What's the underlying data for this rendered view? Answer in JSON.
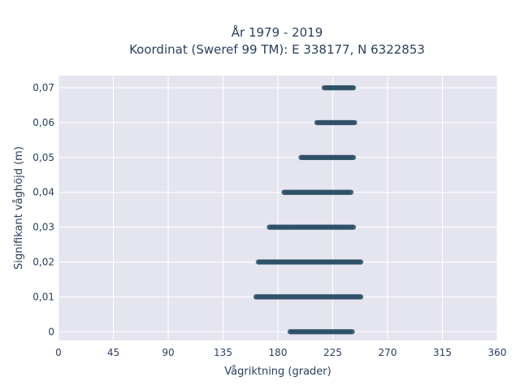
{
  "chart_data": {
    "type": "scatter",
    "title": "År 1979 - 2019",
    "subtitle": "Koordinat (Sweref 99 TM): E 338177, N 6322853",
    "xlabel": "Vågriktning (grader)",
    "ylabel": "Signifikant våghöjd (m)",
    "xlim": [
      0,
      360
    ],
    "ylim": [
      -0.0025,
      0.0735
    ],
    "xticks": [
      0,
      45,
      90,
      135,
      180,
      225,
      270,
      315,
      360
    ],
    "xtick_labels": [
      "0",
      "45",
      "90",
      "135",
      "180",
      "225",
      "270",
      "315",
      "360"
    ],
    "yticks": [
      0,
      0.01,
      0.02,
      0.03,
      0.04,
      0.05,
      0.06,
      0.07
    ],
    "ytick_labels": [
      "0",
      "0,01",
      "0,02",
      "0,03",
      "0,04",
      "0,05",
      "0,06",
      "0,07"
    ],
    "grid": true,
    "marker_color": "#2f5168",
    "plot_bg": "#e5e5f0",
    "bands": [
      {
        "y": 0,
        "x_min": 190,
        "x_max": 241
      },
      {
        "y": 0.01,
        "x_min": 162,
        "x_max": 248
      },
      {
        "y": 0.02,
        "x_min": 164,
        "x_max": 248
      },
      {
        "y": 0.03,
        "x_min": 173,
        "x_max": 242
      },
      {
        "y": 0.04,
        "x_min": 185,
        "x_max": 240
      },
      {
        "y": 0.05,
        "x_min": 199,
        "x_max": 242
      },
      {
        "y": 0.06,
        "x_min": 212,
        "x_max": 243
      },
      {
        "y": 0.07,
        "x_min": 218,
        "x_max": 242
      }
    ]
  }
}
